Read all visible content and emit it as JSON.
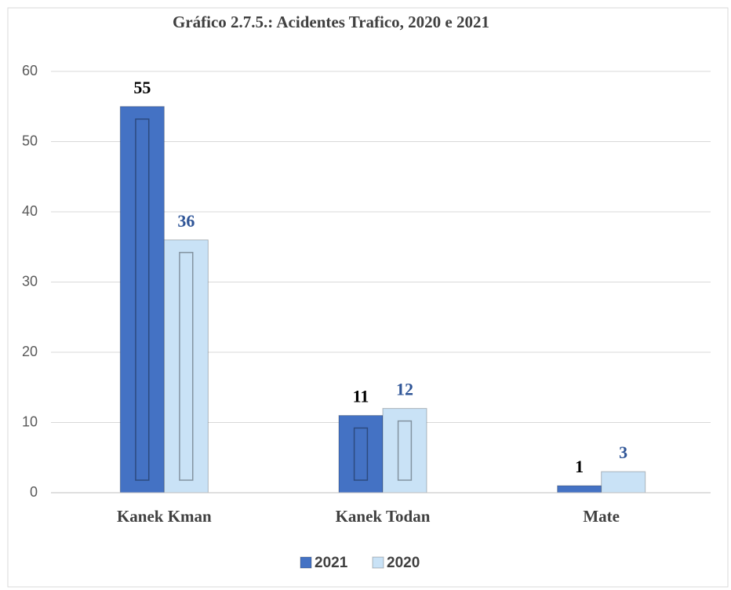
{
  "chart_data": {
    "type": "bar",
    "title": "Gráfico 2.7.5.: Acidentes Trafico, 2020 e 2021",
    "categories": [
      "Kanek Kman",
      "Kanek Todan",
      "Mate"
    ],
    "series": [
      {
        "name": "2021",
        "color": "#4472c4",
        "label_color": "#000000",
        "values": [
          55,
          11,
          1
        ]
      },
      {
        "name": "2020",
        "color": "#c9e2f6",
        "label_color": "#2f5597",
        "values": [
          36,
          12,
          3
        ]
      }
    ],
    "ylim": [
      0,
      60
    ],
    "yticks": [
      0,
      10,
      20,
      30,
      40,
      50,
      60
    ],
    "grid": true,
    "legend": "bottom"
  }
}
